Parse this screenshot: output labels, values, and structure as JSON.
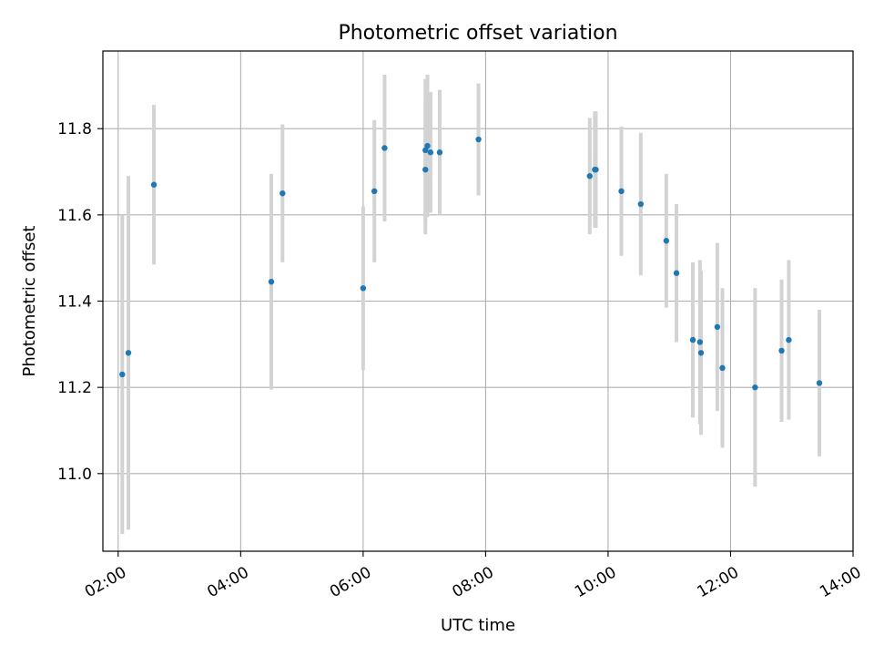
{
  "chart_data": {
    "type": "scatter",
    "title": "Photometric offset variation",
    "xlabel": "UTC time",
    "ylabel": "Photometric offset",
    "x_unit": "hours",
    "xlim": [
      "01:45",
      "14:00"
    ],
    "ylim": [
      10.82,
      11.98
    ],
    "xticks": [
      "02:00",
      "04:00",
      "06:00",
      "08:00",
      "10:00",
      "12:00",
      "14:00"
    ],
    "yticks": [
      11.0,
      11.2,
      11.4,
      11.6,
      11.8
    ],
    "grid": true,
    "colors": {
      "point": "#1f77b4",
      "errorbar": "#d3d3d3",
      "grid": "#b0b0b0"
    },
    "points": [
      {
        "x": "02:04",
        "y": 11.23,
        "yerr": 0.37
      },
      {
        "x": "02:10",
        "y": 11.28,
        "yerr": 0.41
      },
      {
        "x": "02:35",
        "y": 11.67,
        "yerr": 0.185
      },
      {
        "x": "04:30",
        "y": 11.445,
        "yerr": 0.25
      },
      {
        "x": "04:41",
        "y": 11.65,
        "yerr": 0.16
      },
      {
        "x": "06:00",
        "y": 11.43,
        "yerr": 0.19
      },
      {
        "x": "06:11",
        "y": 11.655,
        "yerr": 0.165
      },
      {
        "x": "06:21",
        "y": 11.755,
        "yerr": 0.17
      },
      {
        "x": "07:01",
        "y": 11.705,
        "yerr": 0.15
      },
      {
        "x": "07:01",
        "y": 11.75,
        "yerr": 0.165
      },
      {
        "x": "07:03",
        "y": 11.76,
        "yerr": 0.165
      },
      {
        "x": "07:06",
        "y": 11.745,
        "yerr": 0.14
      },
      {
        "x": "07:15",
        "y": 11.745,
        "yerr": 0.145
      },
      {
        "x": "07:53",
        "y": 11.775,
        "yerr": 0.13
      },
      {
        "x": "09:42",
        "y": 11.69,
        "yerr": 0.135
      },
      {
        "x": "09:47",
        "y": 11.705,
        "yerr": 0.135
      },
      {
        "x": "09:48",
        "y": 11.705,
        "yerr": 0.135
      },
      {
        "x": "10:13",
        "y": 11.655,
        "yerr": 0.15
      },
      {
        "x": "10:32",
        "y": 11.625,
        "yerr": 0.165
      },
      {
        "x": "10:57",
        "y": 11.54,
        "yerr": 0.155
      },
      {
        "x": "11:07",
        "y": 11.465,
        "yerr": 0.16
      },
      {
        "x": "11:23",
        "y": 11.31,
        "yerr": 0.18
      },
      {
        "x": "11:30",
        "y": 11.305,
        "yerr": 0.19
      },
      {
        "x": "11:31",
        "y": 11.28,
        "yerr": 0.19
      },
      {
        "x": "11:47",
        "y": 11.34,
        "yerr": 0.195
      },
      {
        "x": "11:52",
        "y": 11.245,
        "yerr": 0.185
      },
      {
        "x": "12:24",
        "y": 11.2,
        "yerr": 0.23
      },
      {
        "x": "12:50",
        "y": 11.285,
        "yerr": 0.165
      },
      {
        "x": "12:57",
        "y": 11.31,
        "yerr": 0.185
      },
      {
        "x": "13:27",
        "y": 11.21,
        "yerr": 0.17
      }
    ]
  }
}
